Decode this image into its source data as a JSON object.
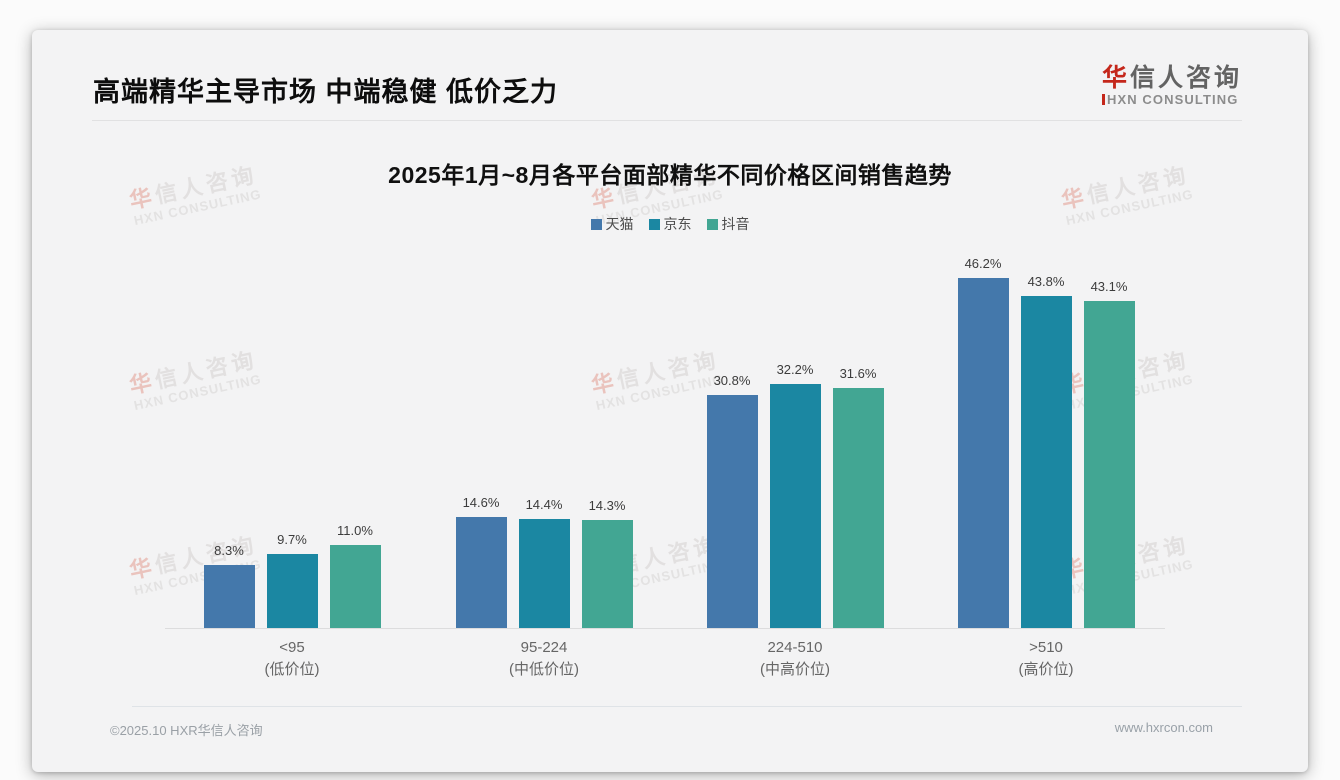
{
  "page": {
    "title": "高端精华主导市场 中端稳健 低价乏力",
    "footer_left": "©2025.10 HXR华信人咨询",
    "footer_right": "www.hxrcon.com"
  },
  "logo": {
    "zh_first": "华",
    "zh_rest": "信人咨询",
    "en": "HXN CONSULTING",
    "accent_color": "#c4271b"
  },
  "watermark": {
    "zh_first": "华",
    "zh_rest": "信人咨询",
    "en": "HXN CONSULTING"
  },
  "chart_data": {
    "type": "bar",
    "title": "2025年1月~8月各平台面部精华不同价格区间销售趋势",
    "categories": [
      {
        "range": "<95",
        "tier": "(低价位)"
      },
      {
        "range": "95-224",
        "tier": "(中低价位)"
      },
      {
        "range": "224-510",
        "tier": "(中高价位)"
      },
      {
        "range": ">510",
        "tier": "(高价位)"
      }
    ],
    "series": [
      {
        "name": "天猫",
        "color": "#4478ab",
        "values": [
          8.3,
          14.6,
          30.8,
          46.2
        ]
      },
      {
        "name": "京东",
        "color": "#1b87a2",
        "values": [
          9.7,
          14.4,
          32.2,
          43.8
        ]
      },
      {
        "name": "抖音",
        "color": "#42a693",
        "values": [
          11.0,
          14.3,
          31.6,
          43.1
        ]
      }
    ],
    "value_suffix": "%",
    "ylim": [
      0,
      50
    ],
    "grid": false,
    "legend_position": "top",
    "xlabel": "",
    "ylabel": ""
  }
}
